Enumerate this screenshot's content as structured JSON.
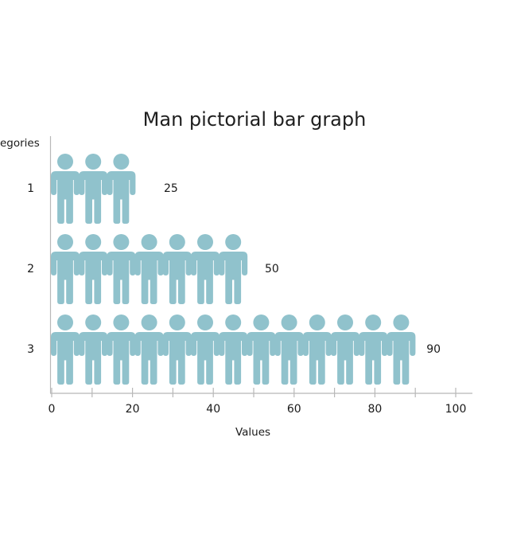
{
  "title": "Man pictorial bar graph",
  "chart_data": {
    "type": "bar",
    "style": "pictorial-bar-graph (rows of man pictograms)",
    "title": "Man pictorial bar graph",
    "xlabel": "Values",
    "ylabel": "Categories",
    "categories": [
      "1",
      "2",
      "3"
    ],
    "values": [
      25,
      50,
      90
    ],
    "value_labels": [
      "25",
      "50",
      "90"
    ],
    "figure_counts": [
      3,
      7,
      13
    ],
    "xlim": [
      0,
      105
    ],
    "x_major_ticks": [
      0,
      20,
      40,
      60,
      80,
      100
    ],
    "x_minor_ticks": [
      10,
      30,
      50,
      70,
      90
    ],
    "grid": false,
    "legend": "none",
    "icon": "man-icon",
    "colors": {
      "figure": "#90c2cc",
      "axis": "#b8b8b8",
      "text": "#1a1a1a"
    }
  }
}
